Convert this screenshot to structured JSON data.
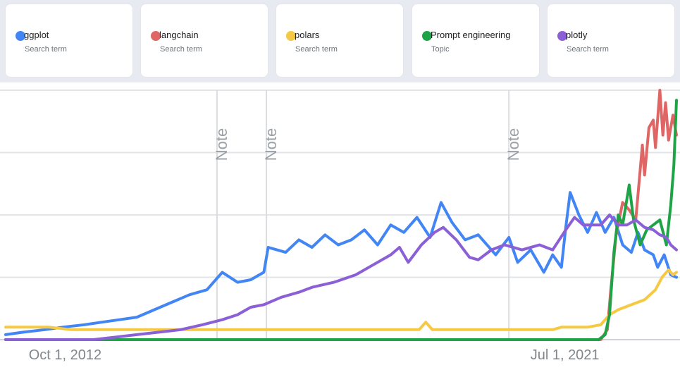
{
  "terms": [
    {
      "name": "ggplot",
      "type": "Search term",
      "color": "#4285f4"
    },
    {
      "name": "langchain",
      "type": "Search term",
      "color": "#e06666"
    },
    {
      "name": "polars",
      "type": "Search term",
      "color": "#f6c945"
    },
    {
      "name": "Prompt engineering",
      "type": "Topic",
      "color": "#1ea446"
    },
    {
      "name": "plotly",
      "type": "Search term",
      "color": "#8b5fd6"
    }
  ],
  "chart_data": {
    "type": "line",
    "x_range": [
      2009.0,
      2024.33
    ],
    "ylim": [
      0,
      100
    ],
    "grid": true,
    "x_ticks": [
      {
        "label": "Oct 1, 2012",
        "x": 2010.36
      },
      {
        "label": "Jul 1, 2021",
        "x": 2021.78
      }
    ],
    "notes": [
      {
        "label": "Note",
        "x": 2013.83
      },
      {
        "label": "Note",
        "x": 2014.96
      },
      {
        "label": "Note",
        "x": 2020.5
      }
    ],
    "series": [
      {
        "name": "ggplot",
        "color": "#4285f4",
        "points": [
          [
            2009.0,
            2
          ],
          [
            2009.4,
            3
          ],
          [
            2009.9,
            4
          ],
          [
            2010.3,
            5
          ],
          [
            2010.8,
            6
          ],
          [
            2011.2,
            7
          ],
          [
            2011.6,
            8
          ],
          [
            2012.0,
            9
          ],
          [
            2012.4,
            12
          ],
          [
            2012.8,
            15
          ],
          [
            2013.2,
            18
          ],
          [
            2013.6,
            20
          ],
          [
            2013.95,
            27
          ],
          [
            2014.3,
            23
          ],
          [
            2014.6,
            24
          ],
          [
            2014.9,
            27
          ],
          [
            2015.0,
            37
          ],
          [
            2015.4,
            35
          ],
          [
            2015.7,
            40
          ],
          [
            2016.0,
            37
          ],
          [
            2016.3,
            42
          ],
          [
            2016.6,
            38
          ],
          [
            2016.9,
            40
          ],
          [
            2017.2,
            44
          ],
          [
            2017.5,
            38
          ],
          [
            2017.8,
            46
          ],
          [
            2018.1,
            43
          ],
          [
            2018.4,
            49
          ],
          [
            2018.7,
            41
          ],
          [
            2018.95,
            55
          ],
          [
            2019.2,
            47
          ],
          [
            2019.5,
            40
          ],
          [
            2019.8,
            42
          ],
          [
            2020.2,
            34
          ],
          [
            2020.5,
            41
          ],
          [
            2020.7,
            31
          ],
          [
            2021.0,
            36
          ],
          [
            2021.3,
            27
          ],
          [
            2021.5,
            34
          ],
          [
            2021.7,
            29
          ],
          [
            2021.8,
            45
          ],
          [
            2021.9,
            59
          ],
          [
            2022.1,
            50
          ],
          [
            2022.3,
            43
          ],
          [
            2022.5,
            51
          ],
          [
            2022.7,
            43
          ],
          [
            2022.9,
            49
          ],
          [
            2023.1,
            38
          ],
          [
            2023.3,
            35
          ],
          [
            2023.45,
            43
          ],
          [
            2023.6,
            36
          ],
          [
            2023.8,
            34
          ],
          [
            2023.9,
            29
          ],
          [
            2024.05,
            34
          ],
          [
            2024.2,
            26
          ],
          [
            2024.33,
            25
          ]
        ]
      },
      {
        "name": "langchain",
        "color": "#e06666",
        "points": [
          [
            2022.35,
            0
          ],
          [
            2022.6,
            0
          ],
          [
            2022.75,
            4
          ],
          [
            2022.83,
            20
          ],
          [
            2022.95,
            42
          ],
          [
            2023.1,
            55
          ],
          [
            2023.25,
            52
          ],
          [
            2023.4,
            48
          ],
          [
            2023.55,
            78
          ],
          [
            2023.6,
            66
          ],
          [
            2023.7,
            85
          ],
          [
            2023.8,
            88
          ],
          [
            2023.85,
            77
          ],
          [
            2023.95,
            100
          ],
          [
            2024.02,
            82
          ],
          [
            2024.08,
            95
          ],
          [
            2024.15,
            80
          ],
          [
            2024.25,
            90
          ],
          [
            2024.33,
            82
          ]
        ]
      },
      {
        "name": "polars",
        "color": "#f6c945",
        "points": [
          [
            2009.0,
            5
          ],
          [
            2009.5,
            5
          ],
          [
            2010.0,
            5
          ],
          [
            2010.5,
            4
          ],
          [
            2011.0,
            4
          ],
          [
            2011.5,
            4
          ],
          [
            2012.0,
            4
          ],
          [
            2012.5,
            4
          ],
          [
            2013.0,
            4
          ],
          [
            2013.5,
            4
          ],
          [
            2014.0,
            4
          ],
          [
            2014.5,
            4
          ],
          [
            2015.0,
            4
          ],
          [
            2015.5,
            4
          ],
          [
            2016.0,
            4
          ],
          [
            2016.5,
            4
          ],
          [
            2017.0,
            4
          ],
          [
            2017.5,
            4
          ],
          [
            2018.0,
            4
          ],
          [
            2018.45,
            4
          ],
          [
            2018.6,
            7
          ],
          [
            2018.75,
            4
          ],
          [
            2019.2,
            4
          ],
          [
            2019.8,
            4
          ],
          [
            2020.4,
            4
          ],
          [
            2021.0,
            4
          ],
          [
            2021.5,
            4
          ],
          [
            2021.7,
            5
          ],
          [
            2022.0,
            5
          ],
          [
            2022.3,
            5
          ],
          [
            2022.6,
            6
          ],
          [
            2022.8,
            10
          ],
          [
            2023.0,
            12
          ],
          [
            2023.3,
            14
          ],
          [
            2023.6,
            16
          ],
          [
            2023.85,
            20
          ],
          [
            2024.0,
            25
          ],
          [
            2024.15,
            28
          ],
          [
            2024.25,
            26
          ],
          [
            2024.33,
            27
          ]
        ]
      },
      {
        "name": "Prompt engineering",
        "color": "#1ea446",
        "points": [
          [
            2009.0,
            0
          ],
          [
            2010.0,
            0
          ],
          [
            2011.0,
            0
          ],
          [
            2012.0,
            0
          ],
          [
            2013.0,
            0
          ],
          [
            2014.0,
            0
          ],
          [
            2015.0,
            0
          ],
          [
            2016.0,
            0
          ],
          [
            2017.0,
            0
          ],
          [
            2018.0,
            0
          ],
          [
            2019.0,
            0
          ],
          [
            2020.0,
            0
          ],
          [
            2021.0,
            0
          ],
          [
            2021.8,
            0
          ],
          [
            2022.3,
            0
          ],
          [
            2022.55,
            0
          ],
          [
            2022.7,
            2
          ],
          [
            2022.8,
            10
          ],
          [
            2022.9,
            35
          ],
          [
            2023.0,
            50
          ],
          [
            2023.1,
            46
          ],
          [
            2023.25,
            62
          ],
          [
            2023.35,
            48
          ],
          [
            2023.5,
            38
          ],
          [
            2023.65,
            44
          ],
          [
            2023.8,
            46
          ],
          [
            2023.95,
            48
          ],
          [
            2024.1,
            38
          ],
          [
            2024.2,
            54
          ],
          [
            2024.27,
            70
          ],
          [
            2024.33,
            96
          ]
        ]
      },
      {
        "name": "plotly",
        "color": "#8b5fd6",
        "points": [
          [
            2009.0,
            0
          ],
          [
            2010.0,
            0
          ],
          [
            2011.0,
            0
          ],
          [
            2011.5,
            1
          ],
          [
            2012.0,
            2
          ],
          [
            2012.5,
            3
          ],
          [
            2013.0,
            4
          ],
          [
            2013.5,
            6
          ],
          [
            2013.95,
            8
          ],
          [
            2014.3,
            10
          ],
          [
            2014.6,
            13
          ],
          [
            2014.9,
            14
          ],
          [
            2015.3,
            17
          ],
          [
            2015.7,
            19
          ],
          [
            2016.0,
            21
          ],
          [
            2016.5,
            23
          ],
          [
            2017.0,
            26
          ],
          [
            2017.4,
            30
          ],
          [
            2017.8,
            34
          ],
          [
            2018.0,
            37
          ],
          [
            2018.2,
            31
          ],
          [
            2018.5,
            38
          ],
          [
            2018.8,
            43
          ],
          [
            2019.0,
            45
          ],
          [
            2019.3,
            40
          ],
          [
            2019.6,
            33
          ],
          [
            2019.8,
            32
          ],
          [
            2020.1,
            36
          ],
          [
            2020.4,
            38
          ],
          [
            2020.8,
            36
          ],
          [
            2021.2,
            38
          ],
          [
            2021.5,
            36
          ],
          [
            2021.8,
            44
          ],
          [
            2022.0,
            49
          ],
          [
            2022.2,
            46
          ],
          [
            2022.4,
            46
          ],
          [
            2022.6,
            46
          ],
          [
            2022.8,
            50
          ],
          [
            2023.0,
            46
          ],
          [
            2023.2,
            46
          ],
          [
            2023.4,
            48
          ],
          [
            2023.6,
            45
          ],
          [
            2023.8,
            44
          ],
          [
            2023.95,
            42
          ],
          [
            2024.1,
            41
          ],
          [
            2024.2,
            38
          ],
          [
            2024.33,
            36
          ]
        ]
      }
    ]
  }
}
